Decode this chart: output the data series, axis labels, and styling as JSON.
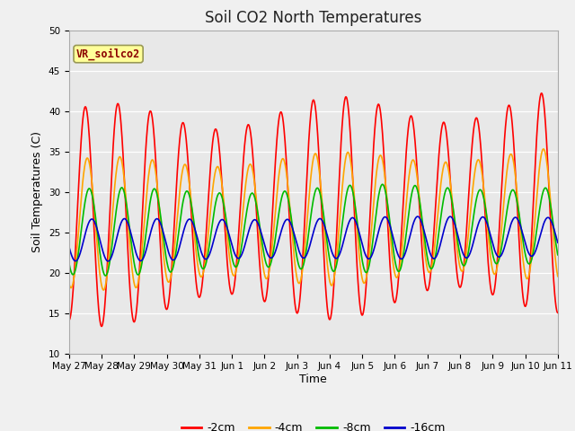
{
  "title": "Soil CO2 North Temperatures",
  "xlabel": "Time",
  "ylabel": "Soil Temperatures (C)",
  "ylim": [
    10,
    50
  ],
  "bg_color": "#e8e8e8",
  "fig_color": "#f0f0f0",
  "line_colors": {
    "-2cm": "#ff0000",
    "-4cm": "#ffa500",
    "-8cm": "#00bb00",
    "-16cm": "#0000cc"
  },
  "legend_label": "VR_soilco2",
  "xtick_labels": [
    "May 27",
    "May 28",
    "May 29",
    "May 30",
    "May 31",
    "Jun 1",
    "Jun 2",
    "Jun 3",
    "Jun 4",
    "Jun 5",
    "Jun 6",
    "Jun 7",
    "Jun 8",
    "Jun 9",
    "Jun 10",
    "Jun 11"
  ],
  "grid_color": "#ffffff",
  "title_fontsize": 12,
  "tick_fontsize": 7.5,
  "ylabel_fontsize": 9,
  "xlabel_fontsize": 9
}
